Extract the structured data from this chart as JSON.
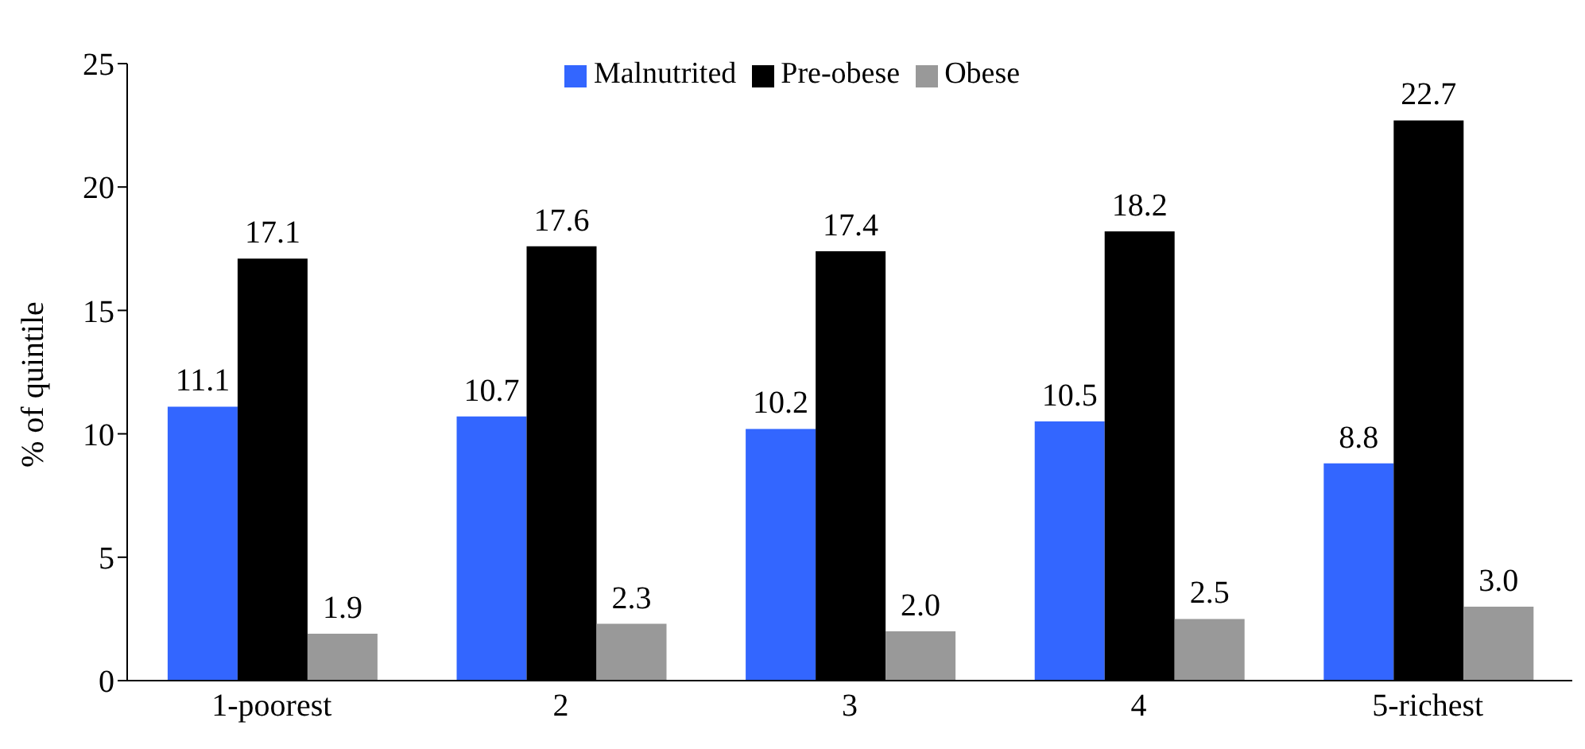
{
  "chart_data": {
    "type": "bar",
    "ylabel": "% of quintile",
    "categories": [
      "1-poorest",
      "2",
      "3",
      "4",
      "5-richest"
    ],
    "series": [
      {
        "name": "Malnutrited",
        "color": "#3366ff",
        "values": [
          11.1,
          10.7,
          10.2,
          10.5,
          8.8
        ],
        "value_labels": [
          "11.1",
          "10.7",
          "10.2",
          "10.5",
          "8.8"
        ]
      },
      {
        "name": "Pre-obese",
        "color": "#000000",
        "values": [
          17.1,
          17.6,
          17.4,
          18.2,
          22.7
        ],
        "value_labels": [
          "17.1",
          "17.6",
          "17.4",
          "18.2",
          "22.7"
        ]
      },
      {
        "name": "Obese",
        "color": "#999999",
        "values": [
          1.9,
          2.3,
          2.0,
          2.5,
          3.0
        ],
        "value_labels": [
          "1.9",
          "2.3",
          "2.0",
          "2.5",
          "3.0"
        ]
      }
    ],
    "ylim": [
      0,
      25
    ],
    "yticks": [
      0,
      5,
      10,
      15,
      20,
      25
    ],
    "grid": false,
    "legend": "top"
  }
}
